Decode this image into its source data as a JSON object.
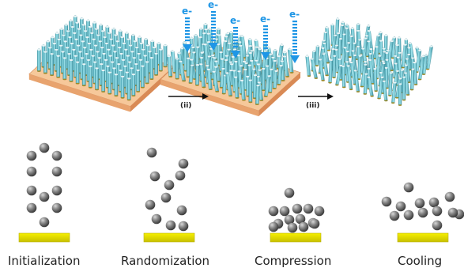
{
  "top": {
    "arrow_labels": [
      "(ii)",
      "(iii)"
    ],
    "electron_label": "e-"
  },
  "stages": [
    {
      "name": "Initialization"
    },
    {
      "name": "Randomization"
    },
    {
      "name": "Compression"
    },
    {
      "name": "Cooling"
    }
  ],
  "colors": {
    "substrate_top": "#f6c89a",
    "substrate_side": "#e8a36e",
    "pillar": "#7fd2de",
    "pillar_dark": "#4aa8b8",
    "pillar_tip": "#e9f4f6",
    "pillar_base": "#9a8a2a",
    "electron": "#1e96e6",
    "sphere": "#7a7a7a",
    "plate": "#e8e000",
    "plate_edge": "#b8b000"
  }
}
